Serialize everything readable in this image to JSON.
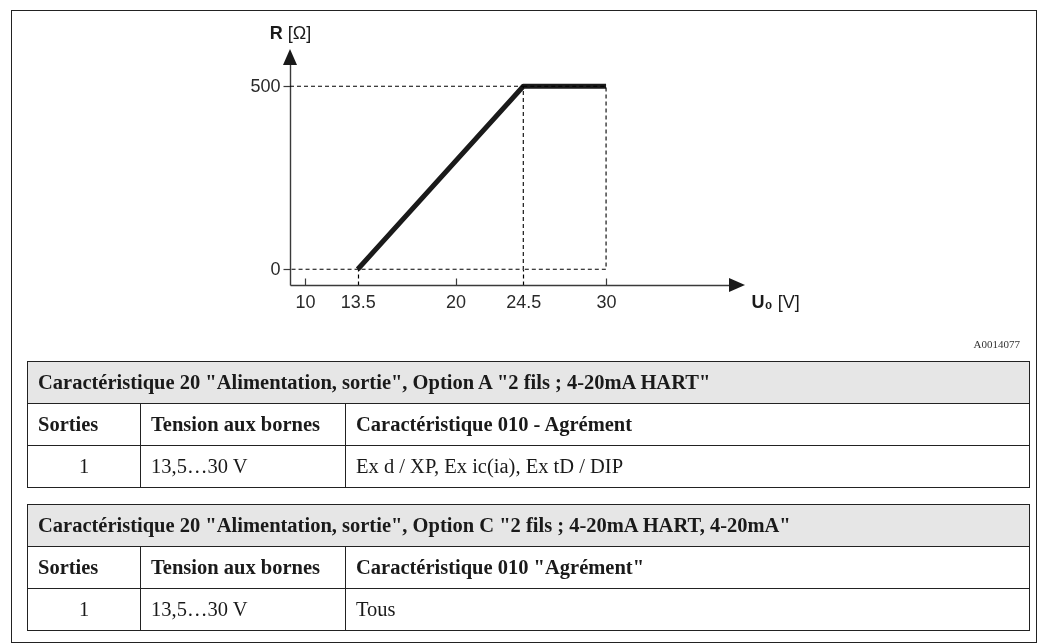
{
  "chart_data": [
    {
      "type": "line",
      "xlabel": "U₀ [V]",
      "ylabel": "R [Ω]",
      "series": [
        {
          "color": "#1a1a1a",
          "x": [
            13.5,
            24.5,
            30
          ],
          "values": [
            0,
            500,
            500
          ]
        },
        {
          "color": "#000000",
          "line_style": "dashed",
          "x": [
            9,
            24.5,
            24.5,
            9,
            null,
            24.5,
            30,
            30,
            24.5
          ],
          "values": [
            500,
            500,
            0,
            0,
            null,
            500,
            500,
            0,
            0
          ]
        }
      ],
      "xlim": [
        9,
        38.7
      ],
      "ylim": [
        -43,
        580
      ],
      "xticks": [
        10,
        13.5,
        20,
        24.5,
        30
      ],
      "yticks": [
        0,
        500
      ],
      "annotations": [
        "A0014077"
      ]
    },
    {
      "type": "other",
      "annotations": [
        "Caractéristique 20 \"Alimentation, sortie\", Option A \"2 fils ; 4-20mA HART\"",
        "Sorties",
        "Tension aux bornes",
        "Caractéristique 010 - Agrément",
        "1",
        "13,5…30 V",
        "Ex d / XP, Ex ic(ia), Ex tD / DIP",
        "Caractéristique 20 \"Alimentation, sortie\", Option C \"2 fils ; 4-20mA HART, 4-20mA\"",
        "Sorties",
        "Tension aux bornes",
        "Caractéristique 010 \"Agrément\"",
        "1",
        "13,5…30 V",
        "Tous"
      ]
    }
  ]
}
